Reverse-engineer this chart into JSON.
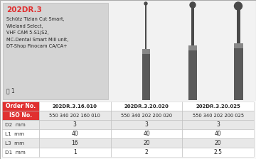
{
  "product_code": "202DR.3",
  "description_lines": [
    "Schütz Tizian Cut Smart,",
    "Wieland Select,",
    "VHF CAM 5-S1/S2,",
    "MC-Dental Smart Mill unit,",
    "DT-Shop Finocam CA/CA+"
  ],
  "blade_count": "1",
  "table_header_left": "Order No.",
  "table_subheader_left": "ISO No.",
  "row_labels": [
    "D2   mm",
    "L1   mm",
    "L3   mm",
    "D1   mm"
  ],
  "columns": [
    {
      "order_no": "202DR.3.16.010",
      "iso_no": "550 340 202 160 010",
      "D2": "3",
      "L1": "40",
      "L3": "16",
      "D1": "1"
    },
    {
      "order_no": "202DR.3.20.020",
      "iso_no": "550 340 202 200 020",
      "D2": "3",
      "L1": "40",
      "L3": "20",
      "D1": "2"
    },
    {
      "order_no": "202DR.3.20.025",
      "iso_no": "550 340 202 200 025",
      "D2": "3",
      "L1": "40",
      "L3": "20",
      "D1": "2.5"
    }
  ],
  "header_bg": "#e03030",
  "header_text_color": "#ffffff",
  "subheader_bg": "#e03030",
  "subheader_text_color": "#ffffff",
  "cell_alt_bg": "#e8e8e8",
  "cell_bg": "#ffffff",
  "cell_text_color": "#333333",
  "info_box_bg": "#d4d4d4",
  "product_code_color": "#e03030",
  "table_border_color": "#bbbbbb",
  "top_bg": "#f2f2f2",
  "overall_bg": "#ffffff"
}
